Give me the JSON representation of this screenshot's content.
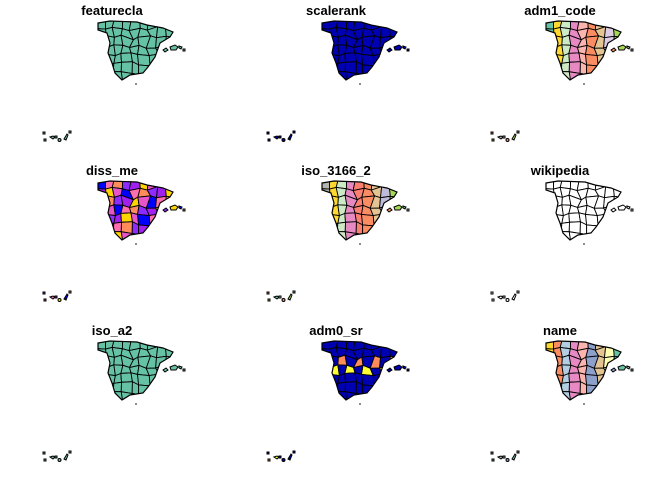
{
  "panels": [
    {
      "title": "featurecla",
      "palette": [
        "#66C2A5"
      ]
    },
    {
      "title": "scalerank",
      "palette": [
        "#0000B3"
      ]
    },
    {
      "title": "adm1_code",
      "palette": [
        "#66C2A5",
        "#FC8D62",
        "#8DA0CB",
        "#E78AC3",
        "#A6D854",
        "#FFD92F",
        "#E5C494",
        "#B3B3B3",
        "#FBB4AE",
        "#B3CDE3",
        "#CCEBC5",
        "#DECBE4"
      ]
    },
    {
      "title": "diss_me",
      "palette": [
        "#0000FF",
        "#8F2BFF",
        "#E855C8",
        "#FF8C5A",
        "#FFD500",
        "#FF6FB0",
        "#A020F0"
      ]
    },
    {
      "title": "iso_3166_2",
      "palette": [
        "#B3B3B3",
        "#FC8D62",
        "#8DA0CB",
        "#E78AC3",
        "#A6D854",
        "#FFD92F",
        "#E5C494",
        "#66C2A5",
        "#FB8072",
        "#80B1D3",
        "#CCEBC5",
        "#BEBADA"
      ]
    },
    {
      "title": "wikipedia",
      "palette": [
        "#FFFFFF"
      ]
    },
    {
      "title": "iso_a2",
      "palette": [
        "#66C2A5"
      ]
    },
    {
      "title": "adm0_sr",
      "palette": [
        "#0000B3",
        "#0000B3",
        "#0000B3",
        "#0000B3",
        "#0000B3",
        "#0000B3",
        "#FF8C5A",
        "#0000B3",
        "#0000B3",
        "#FFFF33"
      ]
    },
    {
      "title": "name",
      "palette": [
        "#FFD92F",
        "#8DA0CB",
        "#A6D854",
        "#E78AC3",
        "#66C2A5",
        "#FC8D62",
        "#E5C494",
        "#B3B3B3",
        "#FBB4AE",
        "#CCEBC5",
        "#B3CDE3",
        "#FFFFB3"
      ]
    }
  ]
}
